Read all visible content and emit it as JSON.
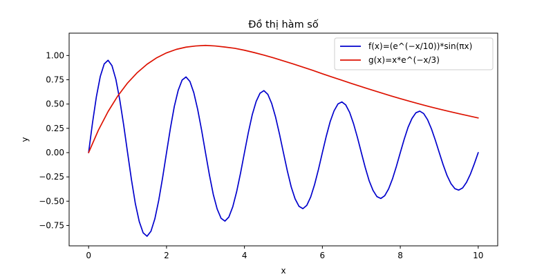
{
  "chart_data": {
    "type": "line",
    "title": "Đồ thị hàm số",
    "xlabel": "x",
    "ylabel": "y",
    "xlim": [
      -0.5,
      10.5
    ],
    "ylim": [
      -0.96,
      1.23
    ],
    "xticks": [
      0,
      2,
      4,
      6,
      8,
      10
    ],
    "xtick_labels": [
      "0",
      "2",
      "4",
      "6",
      "8",
      "10"
    ],
    "yticks": [
      -0.75,
      -0.5,
      -0.25,
      0.0,
      0.25,
      0.5,
      0.75,
      1.0
    ],
    "ytick_labels": [
      "−0.75",
      "−0.50",
      "−0.25",
      "0.00",
      "0.25",
      "0.50",
      "0.75",
      "1.00"
    ],
    "grid": false,
    "legend_position": "top-right",
    "series": [
      {
        "name": "f(x)=(e^(−x/10))*sin(πx)",
        "color": "#0000cc",
        "x": [
          0,
          0.1,
          0.2,
          0.3,
          0.4,
          0.5,
          0.6,
          0.7,
          0.8,
          0.9,
          1.0,
          1.1,
          1.2,
          1.3,
          1.4,
          1.5,
          1.6,
          1.7,
          1.8,
          1.9,
          2.0,
          2.1,
          2.2,
          2.3,
          2.4,
          2.5,
          2.6,
          2.7,
          2.8,
          2.9,
          3.0,
          3.1,
          3.2,
          3.3,
          3.4,
          3.5,
          3.6,
          3.7,
          3.8,
          3.9,
          4.0,
          4.1,
          4.2,
          4.3,
          4.4,
          4.5,
          4.6,
          4.7,
          4.8,
          4.9,
          5.0,
          5.1,
          5.2,
          5.3,
          5.4,
          5.5,
          5.6,
          5.7,
          5.8,
          5.9,
          6.0,
          6.1,
          6.2,
          6.3,
          6.4,
          6.5,
          6.6,
          6.7,
          6.8,
          6.9,
          7.0,
          7.1,
          7.2,
          7.3,
          7.4,
          7.5,
          7.6,
          7.7,
          7.8,
          7.9,
          8.0,
          8.1,
          8.2,
          8.3,
          8.4,
          8.5,
          8.6,
          8.7,
          8.8,
          8.9,
          9.0,
          9.1,
          9.2,
          9.3,
          9.4,
          9.5,
          9.6,
          9.7,
          9.8,
          9.9,
          10.0
        ],
        "y": [
          0,
          0.306,
          0.576,
          0.785,
          0.913,
          0.951,
          0.895,
          0.754,
          0.543,
          0.284,
          0,
          -0.279,
          -0.526,
          -0.71,
          -0.826,
          -0.861,
          -0.81,
          -0.682,
          -0.491,
          -0.257,
          0,
          0.252,
          0.476,
          0.642,
          0.747,
          0.779,
          0.733,
          0.617,
          0.444,
          0.232,
          0,
          -0.228,
          -0.431,
          -0.581,
          -0.676,
          -0.705,
          -0.663,
          -0.558,
          -0.402,
          -0.21,
          0,
          0.207,
          0.39,
          0.526,
          0.612,
          0.638,
          0.6,
          0.505,
          0.364,
          0.19,
          0,
          -0.187,
          -0.353,
          -0.476,
          -0.553,
          -0.577,
          -0.543,
          -0.457,
          -0.329,
          -0.172,
          0,
          0.169,
          0.319,
          0.43,
          0.501,
          0.522,
          0.491,
          0.414,
          0.298,
          0.156,
          0,
          -0.153,
          -0.289,
          -0.389,
          -0.453,
          -0.472,
          -0.444,
          -0.374,
          -0.27,
          -0.141,
          0,
          0.138,
          0.261,
          0.352,
          0.41,
          0.427,
          0.402,
          0.339,
          0.244,
          0.127,
          0,
          -0.125,
          -0.236,
          -0.319,
          -0.371,
          -0.386,
          -0.364,
          -0.306,
          -0.221,
          -0.115,
          0
        ]
      },
      {
        "name": "g(x)=x*e^(−x/3)",
        "color": "#dd1100",
        "x": [
          0,
          0.25,
          0.5,
          0.75,
          1.0,
          1.25,
          1.5,
          1.75,
          2.0,
          2.25,
          2.5,
          2.75,
          3.0,
          3.25,
          3.5,
          3.75,
          4.0,
          4.25,
          4.5,
          4.75,
          5.0,
          5.25,
          5.5,
          5.75,
          6.0,
          6.25,
          6.5,
          6.75,
          7.0,
          7.25,
          7.5,
          7.75,
          8.0,
          8.25,
          8.5,
          8.75,
          9.0,
          9.25,
          9.5,
          9.75,
          10.0
        ],
        "y": [
          0,
          0.23,
          0.423,
          0.584,
          0.717,
          0.824,
          0.91,
          0.977,
          1.027,
          1.063,
          1.086,
          1.098,
          1.104,
          1.098,
          1.087,
          1.074,
          1.054,
          1.03,
          1.004,
          0.975,
          0.944,
          0.913,
          0.88,
          0.847,
          0.812,
          0.778,
          0.745,
          0.711,
          0.679,
          0.647,
          0.616,
          0.585,
          0.556,
          0.527,
          0.5,
          0.473,
          0.448,
          0.424,
          0.401,
          0.379,
          0.357
        ]
      }
    ]
  }
}
